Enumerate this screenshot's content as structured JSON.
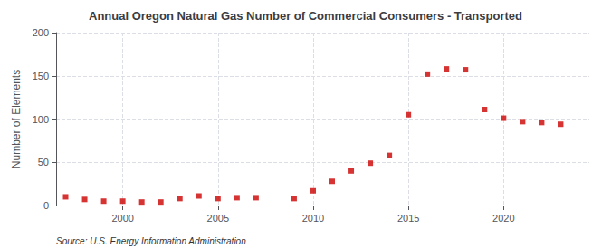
{
  "chart_data": {
    "type": "scatter",
    "title": "Annual Oregon Natural Gas Number of Commercial Consumers - Transported",
    "ylabel": "Number of Elements",
    "source": "Source: U.S. Energy Information Administration",
    "x": [
      1997,
      1998,
      1999,
      2000,
      2001,
      2002,
      2003,
      2004,
      2005,
      2006,
      2007,
      2009,
      2010,
      2011,
      2012,
      2013,
      2014,
      2015,
      2016,
      2017,
      2018,
      2019,
      2020,
      2021,
      2022,
      2023
    ],
    "values": [
      10,
      7,
      5,
      5,
      4,
      4,
      8,
      11,
      8,
      9,
      9,
      8,
      17,
      28,
      40,
      49,
      58,
      105,
      152,
      158,
      157,
      111,
      101,
      97,
      96,
      94
    ],
    "color": "#cc0000",
    "marker": "square",
    "xlim": [
      1996.5,
      2024.5
    ],
    "xticks": [
      2000,
      2005,
      2010,
      2015,
      2020
    ],
    "ylim": [
      0,
      200
    ],
    "yticks": [
      0,
      50,
      100,
      150,
      200
    ],
    "grid": true
  }
}
